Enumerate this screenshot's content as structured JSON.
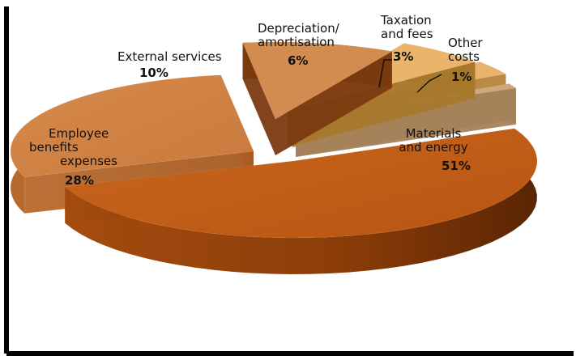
{
  "chart_data": {
    "type": "pie",
    "style": "3d-exploded",
    "legend": "none",
    "slices": [
      {
        "name": "Materials and energy",
        "value": 51,
        "label_lines": [
          "Materials",
          "and energy"
        ],
        "pct_label": "51%",
        "color": "#c0601a"
      },
      {
        "name": "Employee benefits expenses",
        "value": 28,
        "label_lines": [
          "Employee",
          "benefits",
          "expenses"
        ],
        "pct_label": "28%",
        "color": "#d08040"
      },
      {
        "name": "External services",
        "value": 10,
        "label_lines": [
          "External services"
        ],
        "pct_label": "10%",
        "color": "#d38c4f"
      },
      {
        "name": "Depreciation/amortisation",
        "value": 6,
        "label_lines": [
          "Depreciation/",
          "amortisation"
        ],
        "pct_label": "6%",
        "color": "#eab56a"
      },
      {
        "name": "Taxation and fees",
        "value": 3,
        "label_lines": [
          "Taxation",
          "and fees"
        ],
        "pct_label": "3%",
        "color": "#e8b36c"
      },
      {
        "name": "Other costs",
        "value": 1,
        "label_lines": [
          "Other",
          "costs"
        ],
        "pct_label": "1%",
        "color": "#cda97a"
      }
    ]
  }
}
